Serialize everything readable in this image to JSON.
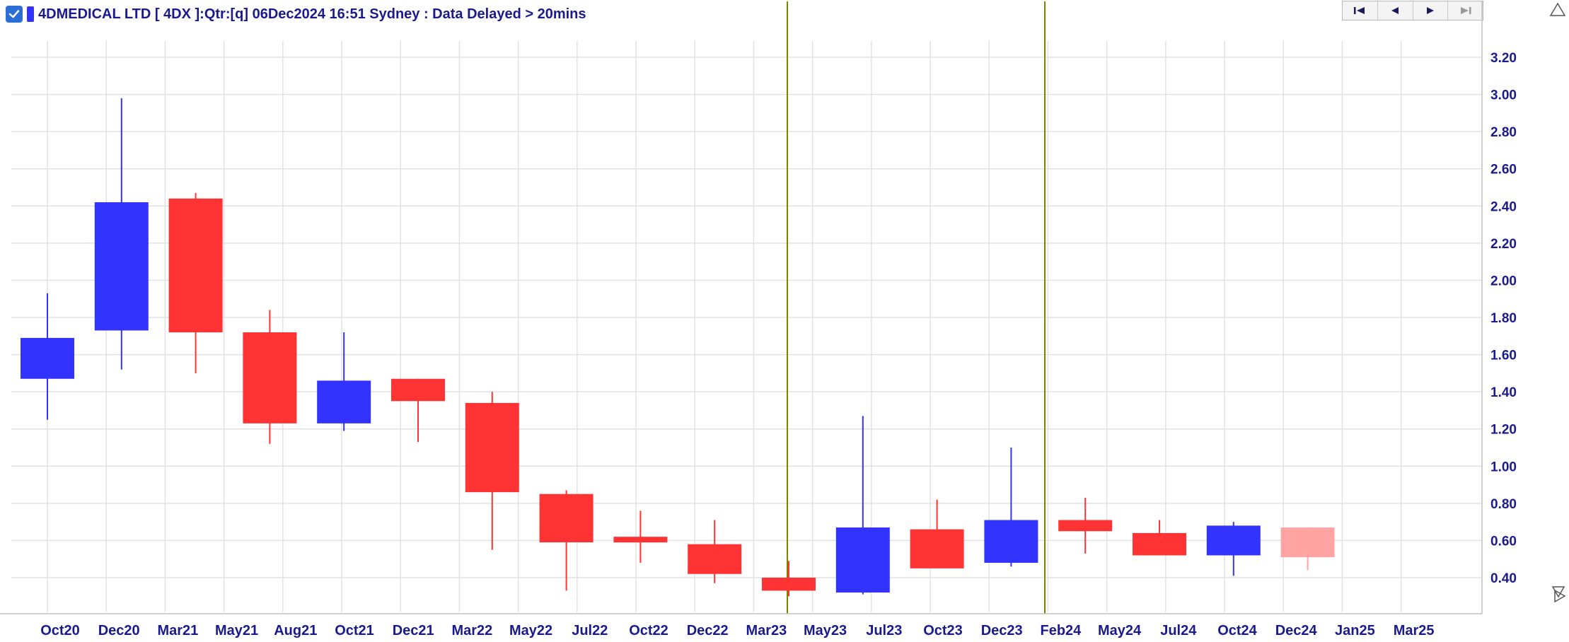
{
  "header": {
    "checkbox_checked": true,
    "title": "4DMEDICAL LTD [ 4DX ]:Qtr:[q]  06Dec2024 16:51 Sydney : Data Delayed > 20mins"
  },
  "nav": {
    "icons": [
      "first-page-icon",
      "previous-icon",
      "next-icon",
      "last-page-icon"
    ]
  },
  "colors": {
    "up": "#3333ff",
    "down": "#ff3333",
    "current": "#ffa3a3",
    "marker": "#808000",
    "grid": "#e2e2e2",
    "text": "#1a1a8c"
  },
  "chart_data": {
    "type": "candlestick",
    "title": "4DMEDICAL LTD [ 4DX ]:Qtr:[q]",
    "ylim": [
      0.3,
      3.3
    ],
    "y_ticks": [
      "3.20",
      "3.00",
      "2.80",
      "2.60",
      "2.40",
      "2.20",
      "2.00",
      "1.80",
      "1.60",
      "1.40",
      "1.20",
      "1.00",
      "0.80",
      "0.60",
      "0.40"
    ],
    "x_ticks": [
      "Oct20",
      "Dec20",
      "Mar21",
      "May21",
      "Aug21",
      "Oct21",
      "Dec21",
      "Mar22",
      "May22",
      "Jul22",
      "Oct22",
      "Dec22",
      "Mar23",
      "May23",
      "Jul23",
      "Oct23",
      "Dec23",
      "Feb24",
      "May24",
      "Jul24",
      "Oct24",
      "Dec24",
      "Jan25",
      "Mar25"
    ],
    "grid": true,
    "candles": [
      {
        "open": 1.47,
        "high": 1.93,
        "low": 1.25,
        "close": 1.69,
        "direction": "up"
      },
      {
        "open": 1.73,
        "high": 2.98,
        "low": 1.52,
        "close": 2.42,
        "direction": "up"
      },
      {
        "open": 2.44,
        "high": 2.47,
        "low": 1.5,
        "close": 1.72,
        "direction": "down"
      },
      {
        "open": 1.72,
        "high": 1.84,
        "low": 1.12,
        "close": 1.23,
        "direction": "down"
      },
      {
        "open": 1.23,
        "high": 1.72,
        "low": 1.19,
        "close": 1.46,
        "direction": "up"
      },
      {
        "open": 1.47,
        "high": 1.47,
        "low": 1.13,
        "close": 1.35,
        "direction": "down"
      },
      {
        "open": 1.34,
        "high": 1.4,
        "low": 0.55,
        "close": 0.86,
        "direction": "down"
      },
      {
        "open": 0.85,
        "high": 0.87,
        "low": 0.33,
        "close": 0.59,
        "direction": "down"
      },
      {
        "open": 0.62,
        "high": 0.76,
        "low": 0.48,
        "close": 0.59,
        "direction": "down"
      },
      {
        "open": 0.58,
        "high": 0.71,
        "low": 0.37,
        "close": 0.42,
        "direction": "down"
      },
      {
        "open": 0.4,
        "high": 0.49,
        "low": 0.3,
        "close": 0.33,
        "direction": "down"
      },
      {
        "open": 0.32,
        "high": 1.27,
        "low": 0.31,
        "close": 0.67,
        "direction": "up"
      },
      {
        "open": 0.66,
        "high": 0.82,
        "low": 0.45,
        "close": 0.45,
        "direction": "down"
      },
      {
        "open": 0.48,
        "high": 1.1,
        "low": 0.46,
        "close": 0.71,
        "direction": "up"
      },
      {
        "open": 0.71,
        "high": 0.83,
        "low": 0.53,
        "close": 0.65,
        "direction": "down"
      },
      {
        "open": 0.64,
        "high": 0.71,
        "low": 0.52,
        "close": 0.52,
        "direction": "down"
      },
      {
        "open": 0.52,
        "high": 0.7,
        "low": 0.41,
        "close": 0.68,
        "direction": "up"
      },
      {
        "open": 0.67,
        "high": 0.67,
        "low": 0.44,
        "close": 0.51,
        "direction": "current"
      }
    ]
  }
}
